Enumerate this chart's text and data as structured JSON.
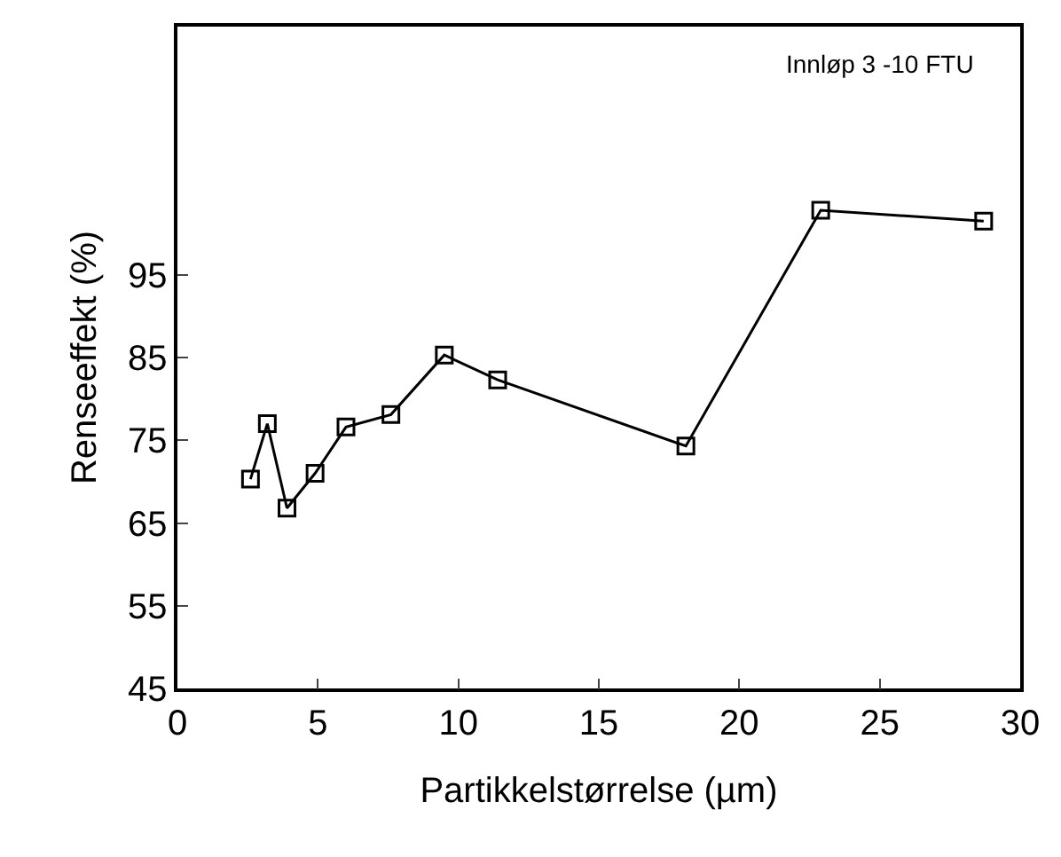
{
  "chart_data": {
    "type": "line",
    "xlabel": "Partikkelstørrelse (µm)",
    "ylabel": "Renseeffekt (%)",
    "annotations": [
      "Innløp 3 -10 FTU"
    ],
    "x": [
      2.6,
      3.2,
      3.9,
      4.9,
      6.0,
      7.6,
      9.5,
      11.4,
      18.1,
      22.9,
      28.7
    ],
    "series": [
      {
        "color": "#000000",
        "values": [
          70.3,
          77.0,
          66.8,
          71.0,
          76.6,
          78.1,
          85.3,
          82.3,
          74.3,
          102.8,
          101.5
        ]
      }
    ],
    "xlim": [
      0,
      30
    ],
    "xticks": [
      0,
      5,
      10,
      15,
      20,
      25,
      30
    ],
    "ylim": [
      45,
      125
    ],
    "yticks": [
      45,
      55,
      65,
      75,
      85,
      95
    ],
    "marker": "square",
    "line_style": "solid"
  }
}
